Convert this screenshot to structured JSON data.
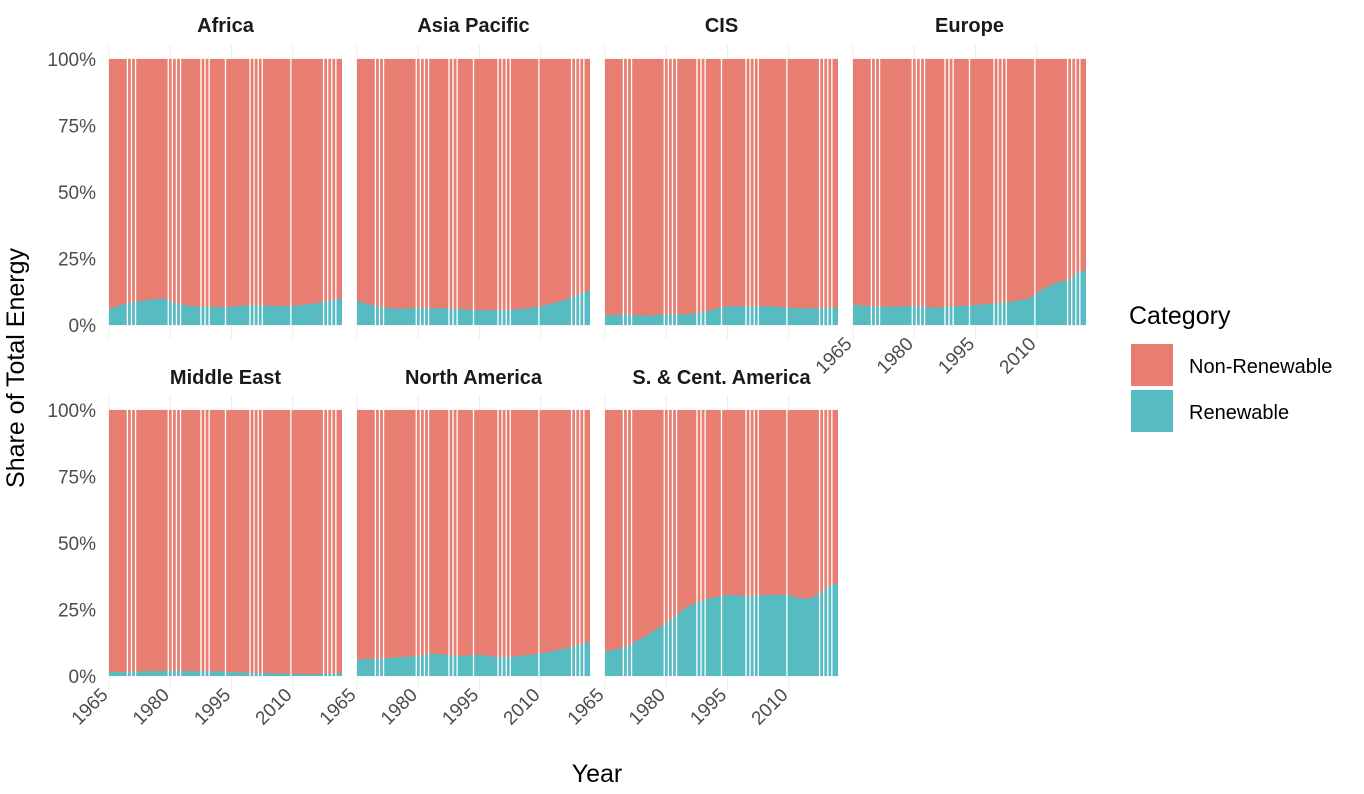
{
  "chart_data": {
    "type": "area",
    "stacking": "fill",
    "xlabel": "Year",
    "ylabel": "Share of Total Energy",
    "x_ticks": [
      1965,
      1980,
      1995,
      2010
    ],
    "y_ticks": [
      0,
      0.25,
      0.5,
      0.75,
      1.0
    ],
    "y_tick_labels": [
      "0%",
      "25%",
      "50%",
      "75%",
      "100%"
    ],
    "xlim": [
      1965,
      2022
    ],
    "ylim": [
      0,
      1
    ],
    "legend": {
      "title": "Category",
      "position": "right",
      "entries": [
        {
          "label": "Non-Renewable",
          "color": "#E87E72"
        },
        {
          "label": "Renewable",
          "color": "#56BCC2"
        }
      ]
    },
    "colors": {
      "Non-Renewable": "#E87E72",
      "Renewable": "#56BCC2"
    },
    "grid": true,
    "gap_years": [
      1969,
      1970,
      1971,
      1979,
      1980,
      1981,
      1982,
      1987,
      1988,
      1989,
      1993,
      1999,
      2000,
      2001,
      2002,
      2009,
      2017,
      2018,
      2019,
      2020
    ],
    "facets": [
      {
        "name": "Africa",
        "renewable_share": [
          {
            "x": 1965,
            "y": 0.06
          },
          {
            "x": 1970,
            "y": 0.085
          },
          {
            "x": 1975,
            "y": 0.095
          },
          {
            "x": 1978,
            "y": 0.1
          },
          {
            "x": 1982,
            "y": 0.08
          },
          {
            "x": 1985,
            "y": 0.07
          },
          {
            "x": 1990,
            "y": 0.068
          },
          {
            "x": 1995,
            "y": 0.068
          },
          {
            "x": 2000,
            "y": 0.075
          },
          {
            "x": 2005,
            "y": 0.072
          },
          {
            "x": 2010,
            "y": 0.072
          },
          {
            "x": 2015,
            "y": 0.08
          },
          {
            "x": 2020,
            "y": 0.095
          },
          {
            "x": 2022,
            "y": 0.1
          }
        ]
      },
      {
        "name": "Asia Pacific",
        "renewable_share": [
          {
            "x": 1965,
            "y": 0.09
          },
          {
            "x": 1970,
            "y": 0.07
          },
          {
            "x": 1975,
            "y": 0.06
          },
          {
            "x": 1980,
            "y": 0.065
          },
          {
            "x": 1985,
            "y": 0.063
          },
          {
            "x": 1990,
            "y": 0.06
          },
          {
            "x": 1995,
            "y": 0.055
          },
          {
            "x": 2000,
            "y": 0.055
          },
          {
            "x": 2005,
            "y": 0.06
          },
          {
            "x": 2010,
            "y": 0.07
          },
          {
            "x": 2015,
            "y": 0.09
          },
          {
            "x": 2020,
            "y": 0.12
          },
          {
            "x": 2022,
            "y": 0.13
          }
        ]
      },
      {
        "name": "CIS",
        "renewable_share": [
          {
            "x": 1965,
            "y": 0.035
          },
          {
            "x": 1970,
            "y": 0.04
          },
          {
            "x": 1975,
            "y": 0.035
          },
          {
            "x": 1980,
            "y": 0.04
          },
          {
            "x": 1985,
            "y": 0.04
          },
          {
            "x": 1990,
            "y": 0.05
          },
          {
            "x": 1993,
            "y": 0.065
          },
          {
            "x": 1995,
            "y": 0.07
          },
          {
            "x": 2000,
            "y": 0.07
          },
          {
            "x": 2005,
            "y": 0.07
          },
          {
            "x": 2010,
            "y": 0.065
          },
          {
            "x": 2015,
            "y": 0.062
          },
          {
            "x": 2020,
            "y": 0.065
          },
          {
            "x": 2022,
            "y": 0.065
          }
        ]
      },
      {
        "name": "Europe",
        "renewable_share": [
          {
            "x": 1965,
            "y": 0.075
          },
          {
            "x": 1970,
            "y": 0.07
          },
          {
            "x": 1975,
            "y": 0.068
          },
          {
            "x": 1980,
            "y": 0.072
          },
          {
            "x": 1985,
            "y": 0.065
          },
          {
            "x": 1990,
            "y": 0.07
          },
          {
            "x": 1995,
            "y": 0.075
          },
          {
            "x": 2000,
            "y": 0.082
          },
          {
            "x": 2005,
            "y": 0.09
          },
          {
            "x": 2008,
            "y": 0.1
          },
          {
            "x": 2010,
            "y": 0.12
          },
          {
            "x": 2012,
            "y": 0.14
          },
          {
            "x": 2015,
            "y": 0.16
          },
          {
            "x": 2018,
            "y": 0.17
          },
          {
            "x": 2020,
            "y": 0.2
          },
          {
            "x": 2022,
            "y": 0.205
          }
        ]
      },
      {
        "name": "Middle East",
        "renewable_share": [
          {
            "x": 1965,
            "y": 0.015
          },
          {
            "x": 1970,
            "y": 0.015
          },
          {
            "x": 1975,
            "y": 0.018
          },
          {
            "x": 1980,
            "y": 0.02
          },
          {
            "x": 1985,
            "y": 0.018
          },
          {
            "x": 1990,
            "y": 0.018
          },
          {
            "x": 1995,
            "y": 0.015
          },
          {
            "x": 2000,
            "y": 0.012
          },
          {
            "x": 2005,
            "y": 0.01
          },
          {
            "x": 2010,
            "y": 0.008
          },
          {
            "x": 2015,
            "y": 0.006
          },
          {
            "x": 2020,
            "y": 0.01
          },
          {
            "x": 2022,
            "y": 0.012
          }
        ]
      },
      {
        "name": "North America",
        "renewable_share": [
          {
            "x": 1965,
            "y": 0.062
          },
          {
            "x": 1970,
            "y": 0.065
          },
          {
            "x": 1975,
            "y": 0.07
          },
          {
            "x": 1980,
            "y": 0.075
          },
          {
            "x": 1983,
            "y": 0.085
          },
          {
            "x": 1985,
            "y": 0.082
          },
          {
            "x": 1990,
            "y": 0.075
          },
          {
            "x": 1995,
            "y": 0.08
          },
          {
            "x": 2000,
            "y": 0.07
          },
          {
            "x": 2005,
            "y": 0.075
          },
          {
            "x": 2010,
            "y": 0.085
          },
          {
            "x": 2015,
            "y": 0.1
          },
          {
            "x": 2020,
            "y": 0.12
          },
          {
            "x": 2022,
            "y": 0.13
          }
        ]
      },
      {
        "name": "S. & Cent. America",
        "renewable_share": [
          {
            "x": 1965,
            "y": 0.09
          },
          {
            "x": 1970,
            "y": 0.11
          },
          {
            "x": 1975,
            "y": 0.15
          },
          {
            "x": 1980,
            "y": 0.2
          },
          {
            "x": 1985,
            "y": 0.26
          },
          {
            "x": 1990,
            "y": 0.29
          },
          {
            "x": 1995,
            "y": 0.305
          },
          {
            "x": 2000,
            "y": 0.3
          },
          {
            "x": 2005,
            "y": 0.305
          },
          {
            "x": 2010,
            "y": 0.305
          },
          {
            "x": 2012,
            "y": 0.295
          },
          {
            "x": 2015,
            "y": 0.29
          },
          {
            "x": 2018,
            "y": 0.315
          },
          {
            "x": 2020,
            "y": 0.34
          },
          {
            "x": 2022,
            "y": 0.35
          }
        ]
      }
    ]
  }
}
